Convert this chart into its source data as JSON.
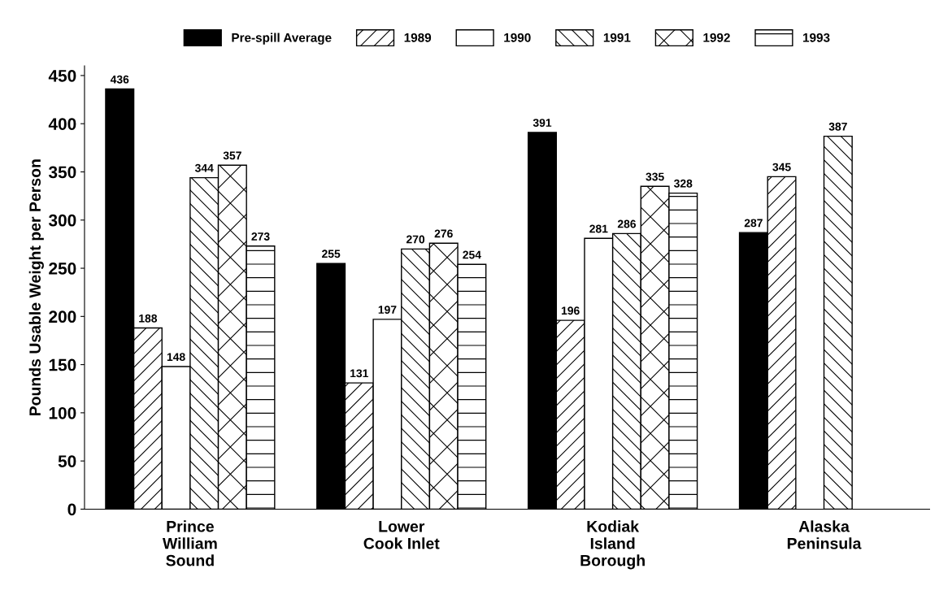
{
  "chart_data": {
    "type": "bar",
    "ylabel": "Pounds Usable Weight per Person",
    "categories": [
      "Prince\nWilliam\nSound",
      "Lower\nCook Inlet",
      "Kodiak\nIsland\nBorough",
      "Alaska\nPeninsula"
    ],
    "series": [
      {
        "name": "Pre-spill Average",
        "color": "#000000",
        "values": [
          436,
          255,
          391,
          287
        ]
      },
      {
        "name": "1989",
        "color": "#000000",
        "values": [
          188,
          131,
          196,
          345
        ]
      },
      {
        "name": "1990",
        "color": "#ffffff",
        "values": [
          148,
          197,
          281,
          null
        ]
      },
      {
        "name": "1991",
        "color": "#000000",
        "values": [
          344,
          270,
          286,
          387
        ]
      },
      {
        "name": "1992",
        "color": "#000000",
        "values": [
          357,
          276,
          335,
          null
        ]
      },
      {
        "name": "1993",
        "color": "#000000",
        "values": [
          273,
          254,
          328,
          null
        ]
      }
    ],
    "ylim": [
      0,
      460
    ],
    "yticks": [
      0,
      50,
      100,
      150,
      200,
      250,
      300,
      350,
      400,
      450
    ],
    "data_labels": true,
    "legend": "top",
    "grid": false
  }
}
